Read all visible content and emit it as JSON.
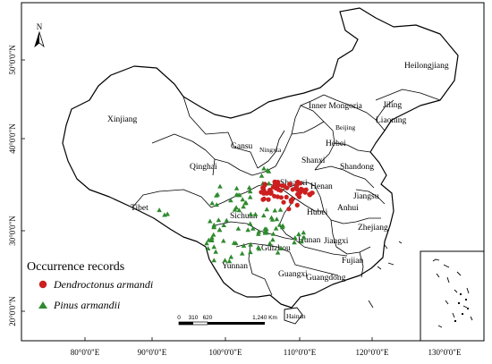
{
  "map": {
    "north_label": "N",
    "lat_labels": [
      "50°0'0\"N",
      "40°0'0\"N",
      "30°0'0\"N",
      "20°0'0\"N"
    ],
    "lon_labels": [
      "80°0'0\"E",
      "90°0'0\"E",
      "100°0'0\"E",
      "110°0'0\"E",
      "120°0'0\"E",
      "130°0'0\"E"
    ],
    "provinces": {
      "heilongjiang": "Heilongjiang",
      "jiling": "Jiling",
      "liaoning": "Liaoning",
      "inner_mongoria": "Inner Mongoria",
      "xinjiang": "Xinjiang",
      "gansu": "Gansu",
      "ningxia": "Ningxia",
      "hebei": "Hebei",
      "beijing": "Beijing",
      "shanxi": "Shanxi",
      "shandong": "Shandong",
      "qinghai": "Qinghai",
      "shaanxi": "Shaanxi",
      "henan": "Henan",
      "tibet": "Tibet",
      "sichuan": "Sichuan",
      "hubei": "Hubei",
      "anhui": "Anhui",
      "jiangsu": "Jiangsu",
      "zhejiang": "Zhejiang",
      "jiangxi": "Jiangxi",
      "hunan": "Hunan",
      "guizhou": "Guizhou",
      "yunnan": "Yunnan",
      "guangxi": "Guangxi",
      "guangdong": "Guangdong",
      "fujian": "Fujian",
      "hainan": "Hainan"
    },
    "legend": {
      "title": "Occurrence records",
      "dendroctonus": "Dendroctonus armandi",
      "pinus": "Pinus armandii"
    },
    "scale": {
      "ticks": [
        "0",
        "310",
        "620",
        "1,240 Km"
      ]
    },
    "colors": {
      "dendroctonus": "#cc1f1f",
      "pinus": "#2f8a2f",
      "border": "#000000"
    }
  }
}
